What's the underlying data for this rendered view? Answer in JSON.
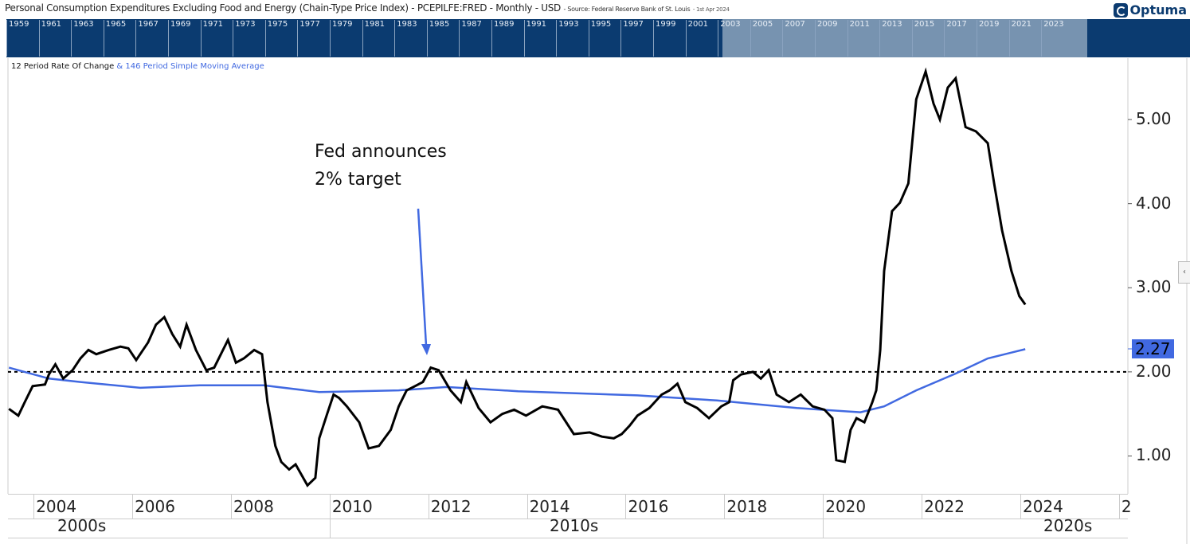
{
  "header": {
    "title": "Personal Consumption Expenditures Excluding Food and Energy (Chain-Type Price Index) - PCEPILFE:FRED - Monthly - USD",
    "source": "- Source: Federal Reserve Bank of St. Louis",
    "date": "- 1st Apr 2024",
    "logo": "Optuma"
  },
  "navigator": {
    "years": [
      "1959",
      "1961",
      "1963",
      "1965",
      "1967",
      "1969",
      "1971",
      "1973",
      "1975",
      "1977",
      "1979",
      "1981",
      "1983",
      "1985",
      "1987",
      "1989",
      "1991",
      "1993",
      "1995",
      "1997",
      "1999",
      "2001",
      "2003",
      "2005",
      "2007",
      "2009",
      "2011",
      "2013",
      "2015",
      "2017",
      "2019",
      "2021",
      "2023"
    ]
  },
  "legend": {
    "primary": "12 Period Rate Of Change",
    "secondary": "& 146 Period Simple Moving Average"
  },
  "annotation": {
    "line1": "Fed announces",
    "line2": "2% target"
  },
  "last_value": "2.27",
  "colors": {
    "roc": "#000000",
    "sma": "#4169e1",
    "navigator": "#0b3b70",
    "window": "#7793b0"
  },
  "chart_data": {
    "type": "line",
    "title": "",
    "xlim": [
      2003.48,
      2026.18
    ],
    "ylim": [
      0.55,
      5.73
    ],
    "y_ticks": [
      "1.00",
      "2.00",
      "3.00",
      "4.00",
      "5.00"
    ],
    "x_ticks": [
      "2004",
      "2006",
      "2008",
      "2010",
      "2012",
      "2014",
      "2016",
      "2018",
      "2020",
      "2022",
      "2024",
      "2"
    ],
    "decades": [
      "2000s",
      "2010s",
      "2020s"
    ],
    "reference_line": 2.0,
    "series": [
      {
        "name": "12 Period Rate Of Change",
        "x": [
          2003.5,
          2003.69,
          2003.82,
          2003.98,
          2004.23,
          2004.31,
          2004.44,
          2004.6,
          2004.79,
          2004.95,
          2005.11,
          2005.27,
          2005.52,
          2005.76,
          2005.92,
          2006.08,
          2006.32,
          2006.48,
          2006.65,
          2006.81,
          2006.97,
          2007.1,
          2007.29,
          2007.5,
          2007.66,
          2007.94,
          2008.1,
          2008.26,
          2008.47,
          2008.63,
          2008.74,
          2008.9,
          2009.02,
          2009.18,
          2009.31,
          2009.55,
          2009.71,
          2009.79,
          2009.95,
          2010.08,
          2010.19,
          2010.35,
          2010.6,
          2010.79,
          2011.0,
          2011.24,
          2011.4,
          2011.56,
          2011.73,
          2011.89,
          2012.05,
          2012.21,
          2012.45,
          2012.66,
          2012.77,
          2013.02,
          2013.26,
          2013.5,
          2013.74,
          2013.98,
          2014.31,
          2014.63,
          2014.95,
          2015.27,
          2015.52,
          2015.76,
          2015.92,
          2016.08,
          2016.24,
          2016.48,
          2016.73,
          2016.89,
          2017.05,
          2017.21,
          2017.45,
          2017.69,
          2017.94,
          2018.1,
          2018.18,
          2018.34,
          2018.58,
          2018.74,
          2018.9,
          2019.06,
          2019.31,
          2019.55,
          2019.79,
          2020.03,
          2020.19,
          2020.27,
          2020.44,
          2020.56,
          2020.68,
          2020.84,
          2021.0,
          2021.08,
          2021.16,
          2021.24,
          2021.4,
          2021.56,
          2021.73,
          2021.89,
          2022.08,
          2022.24,
          2022.37,
          2022.53,
          2022.69,
          2022.89,
          2023.1,
          2023.34,
          2023.47,
          2023.63,
          2023.82,
          2023.98,
          2024.1
        ],
        "values": [
          1.56,
          1.48,
          1.64,
          1.83,
          1.85,
          1.97,
          2.09,
          1.92,
          2.02,
          2.16,
          2.26,
          2.21,
          2.26,
          2.3,
          2.28,
          2.14,
          2.35,
          2.56,
          2.65,
          2.45,
          2.3,
          2.56,
          2.26,
          2.02,
          2.05,
          2.38,
          2.11,
          2.16,
          2.26,
          2.21,
          1.64,
          1.12,
          0.93,
          0.84,
          0.9,
          0.65,
          0.74,
          1.21,
          1.5,
          1.73,
          1.69,
          1.59,
          1.4,
          1.09,
          1.12,
          1.31,
          1.59,
          1.78,
          1.83,
          1.88,
          2.05,
          2.02,
          1.78,
          1.64,
          1.88,
          1.57,
          1.4,
          1.5,
          1.55,
          1.48,
          1.59,
          1.55,
          1.26,
          1.28,
          1.23,
          1.21,
          1.26,
          1.36,
          1.48,
          1.57,
          1.73,
          1.78,
          1.86,
          1.64,
          1.57,
          1.45,
          1.59,
          1.64,
          1.9,
          1.97,
          2.0,
          1.92,
          2.02,
          1.73,
          1.64,
          1.73,
          1.59,
          1.55,
          1.45,
          0.95,
          0.93,
          1.31,
          1.45,
          1.4,
          1.64,
          1.78,
          2.26,
          3.2,
          3.91,
          4.01,
          4.24,
          5.24,
          5.57,
          5.19,
          5.0,
          5.38,
          5.49,
          4.91,
          4.86,
          4.72,
          4.24,
          3.68,
          3.2,
          2.9,
          2.8
        ]
      },
      {
        "name": "146 Period Simple Moving Average",
        "x": [
          2003.5,
          2004.31,
          2004.95,
          2006.16,
          2007.37,
          2008.66,
          2009.79,
          2011.4,
          2012.37,
          2013.82,
          2016.24,
          2017.85,
          2019.47,
          2020.76,
          2021.24,
          2021.89,
          2022.69,
          2023.34,
          2024.1
        ],
        "values": [
          2.05,
          1.92,
          1.88,
          1.81,
          1.84,
          1.84,
          1.76,
          1.78,
          1.82,
          1.77,
          1.72,
          1.66,
          1.57,
          1.52,
          1.59,
          1.78,
          1.98,
          2.16,
          2.27
        ]
      }
    ]
  }
}
